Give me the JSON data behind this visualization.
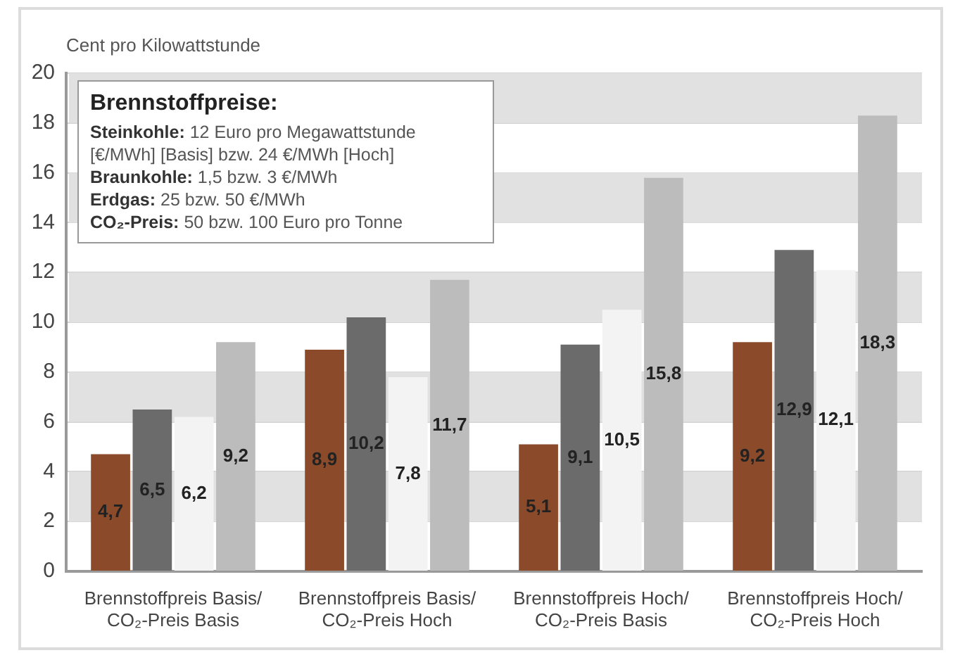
{
  "chart_data": {
    "type": "bar",
    "ylabel": "Cent pro Kilowattstunde",
    "categories": [
      "Brennstoffpreis Basis/ CO₂-Preis Basis",
      "Brennstoffpreis Basis/ CO₂-Preis Hoch",
      "Brennstoffpreis Hoch/ CO₂-Preis Basis",
      "Brennstoffpreis Hoch/ CO₂-Preis Hoch"
    ],
    "series": [
      {
        "color": "#8b4b2b",
        "values": [
          4.7,
          8.9,
          5.1,
          9.2
        ],
        "value_labels": [
          "4,7",
          "8,9",
          "5,1",
          "9,2"
        ]
      },
      {
        "color": "#6b6b6b",
        "values": [
          6.5,
          10.2,
          9.1,
          12.9
        ],
        "value_labels": [
          "6,5",
          "10,2",
          "9,1",
          "12,9"
        ]
      },
      {
        "color": "#f3f3f3",
        "values": [
          6.2,
          7.8,
          10.5,
          12.1
        ],
        "value_labels": [
          "6,2",
          "7,8",
          "10,5",
          "12,1"
        ]
      },
      {
        "color": "#bcbcbc",
        "values": [
          9.2,
          11.7,
          15.8,
          18.3
        ],
        "value_labels": [
          "9,2",
          "11,7",
          "15,8",
          "18,3"
        ]
      }
    ],
    "ylim": [
      0,
      20
    ],
    "yticks": [
      0,
      2,
      4,
      6,
      8,
      10,
      12,
      14,
      16,
      18,
      20
    ],
    "grid": "y",
    "annotations": [
      "Brennstoffpreise:",
      "Steinkohle: 12 Euro pro Megawattstunde [€/MWh] [Basis] bzw. 24 €/MWh [Hoch]",
      "Braunkohle: 1,5 bzw. 3 €/MWh",
      "Erdgas: 25 bzw. 50 €/MWh",
      "CO₂-Preis: 50 bzw. 100 Euro pro Tonne"
    ]
  }
}
